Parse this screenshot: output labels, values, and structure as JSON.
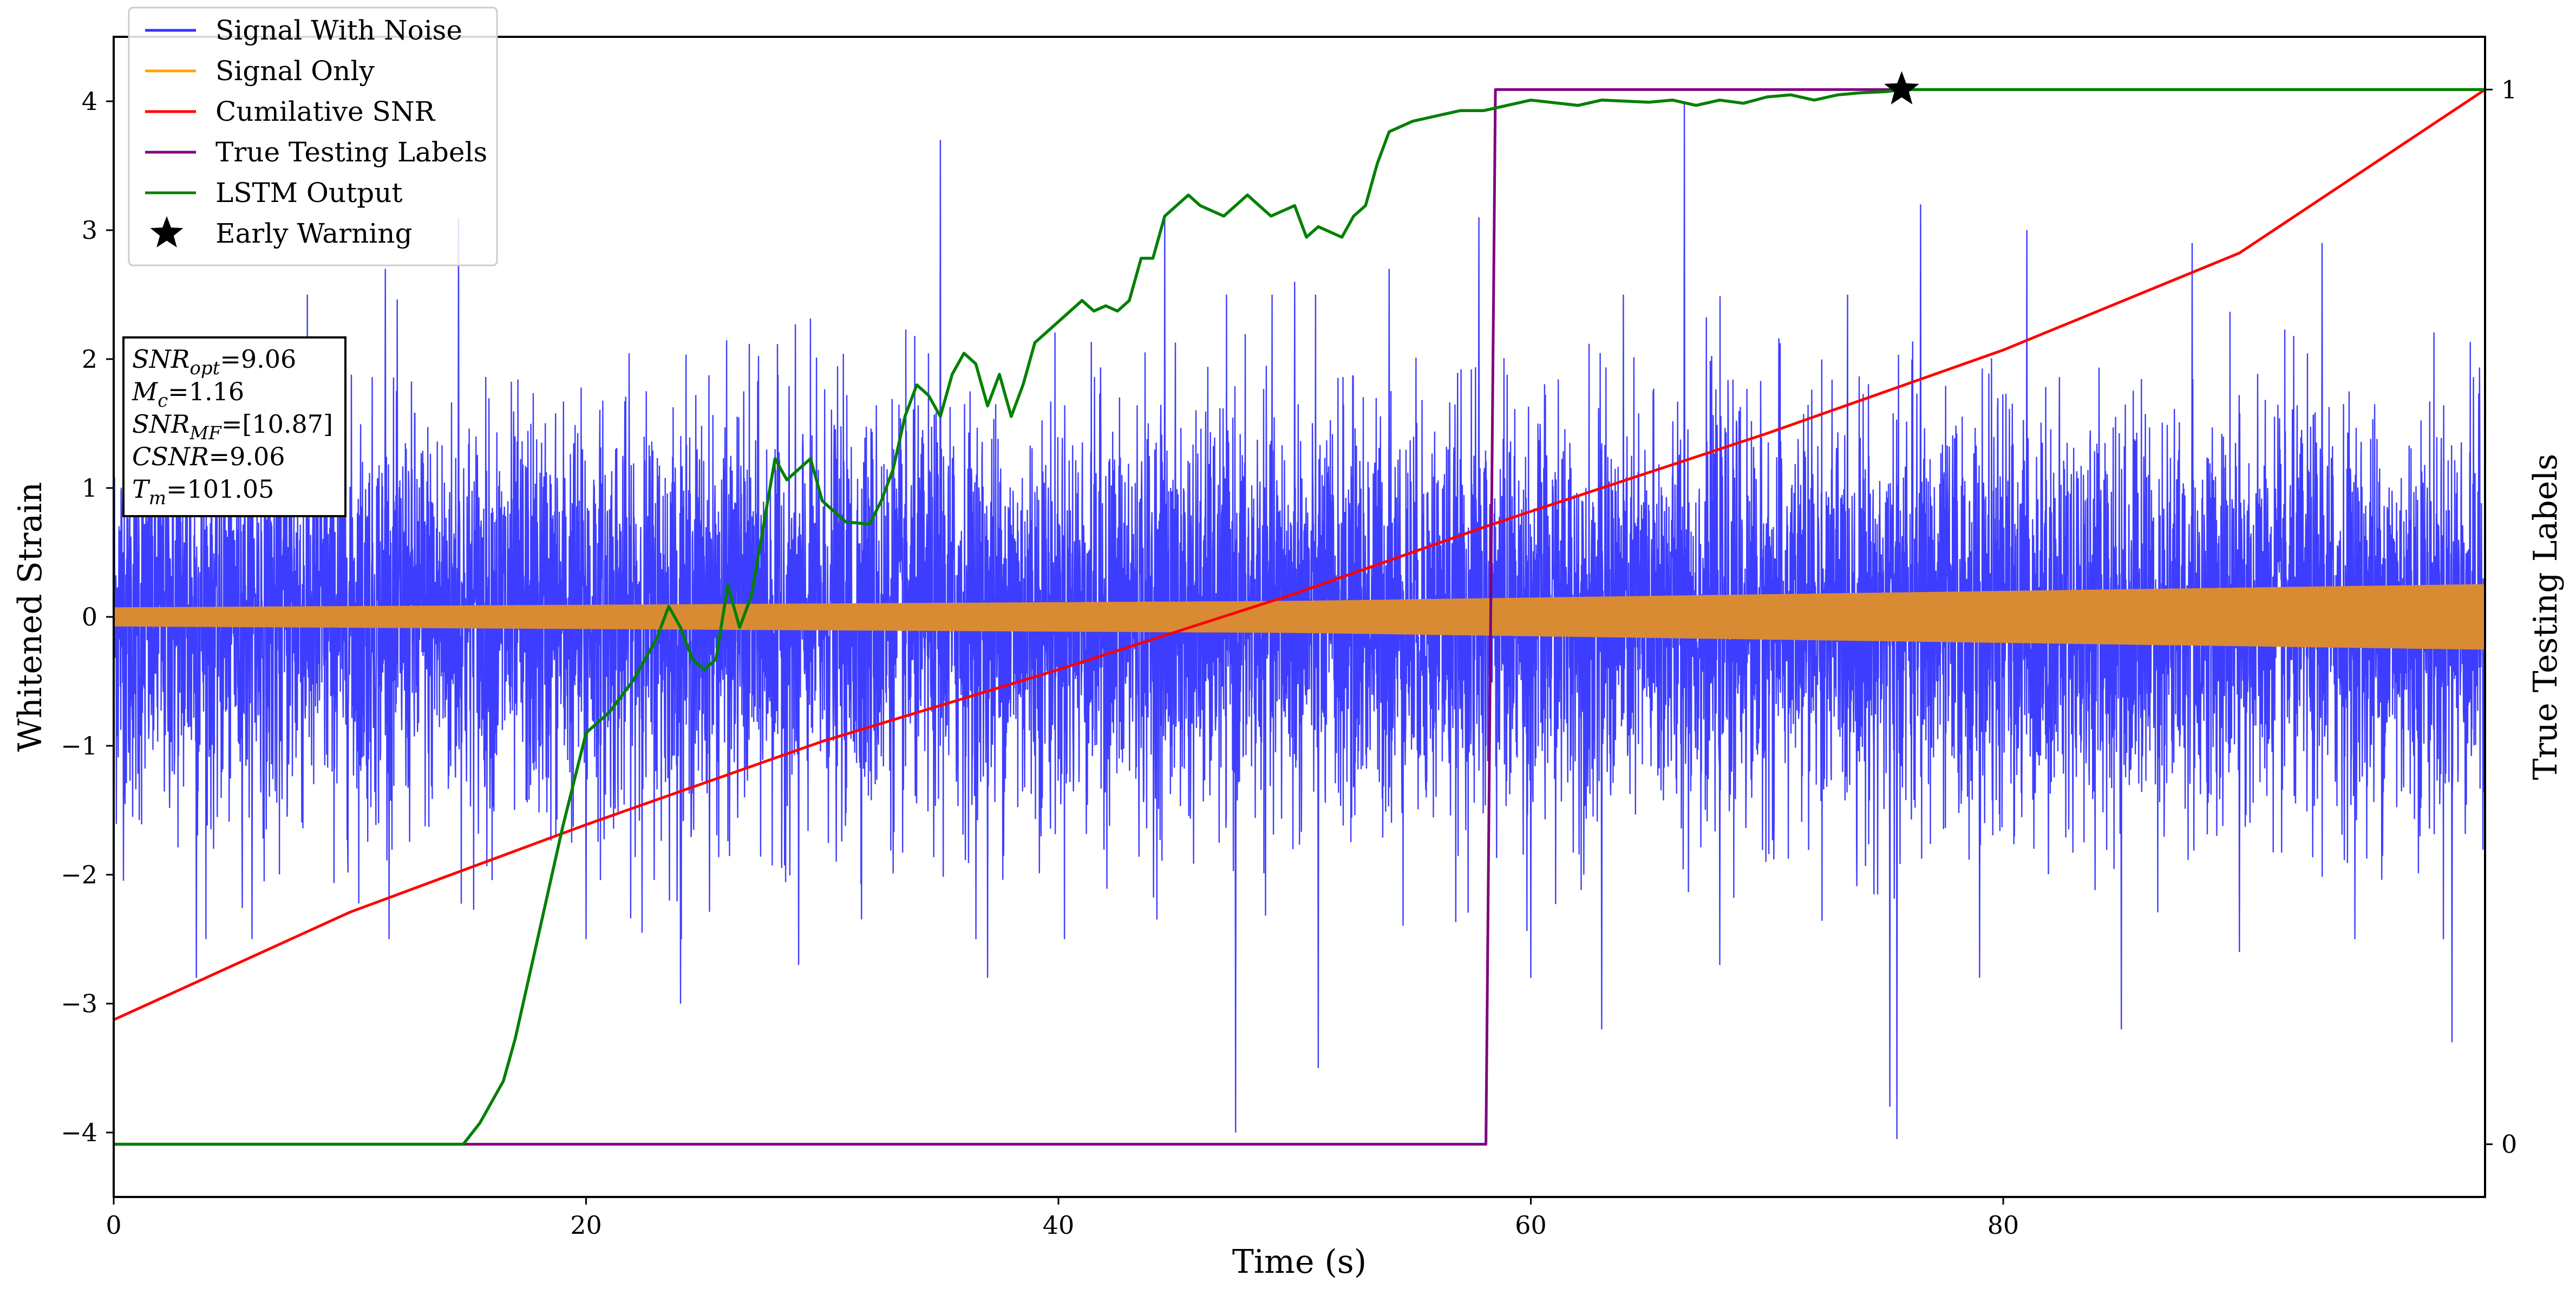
{
  "chart_data": {
    "type": "line",
    "title": "",
    "xlabel": "Time (s)",
    "ylabel": "Whitened Strain",
    "ylabel_right": "True Testing Labels",
    "xlim": [
      0,
      100.4
    ],
    "ylim": [
      -4.5,
      4.5
    ],
    "ylim_right": [
      -0.05,
      1.05
    ],
    "x_ticks": [
      0,
      20,
      40,
      60,
      80
    ],
    "x_tick_labels": [
      "0",
      "20",
      "40",
      "60",
      "80"
    ],
    "y_ticks": [
      -4,
      -3,
      -2,
      -1,
      0,
      1,
      2,
      3,
      4
    ],
    "y_tick_labels": [
      "−4",
      "−3",
      "−2",
      "−1",
      "0",
      "1",
      "2",
      "3",
      "4"
    ],
    "y_right_ticks": [
      0,
      1
    ],
    "y_right_tick_labels": [
      "0",
      "1"
    ],
    "grid": false,
    "legend_position": "top-left",
    "legend": [
      {
        "label": "Signal With Noise",
        "color": "#3333ff",
        "marker": "line"
      },
      {
        "label": "Signal Only",
        "color": "#ffa500",
        "marker": "line"
      },
      {
        "label": "Cumilative SNR",
        "color": "#ff0000",
        "marker": "line"
      },
      {
        "label": "True Testing Labels",
        "color": "#800080",
        "marker": "line"
      },
      {
        "label": "LSTM Output",
        "color": "#008000",
        "marker": "line"
      },
      {
        "label": "Early Warning",
        "color": "#000000",
        "marker": "star"
      }
    ],
    "annotation": [
      {
        "sym": "SNR",
        "sub": "opt",
        "val": "=9.06"
      },
      {
        "sym": "M",
        "sub": "c",
        "val": "=1.16"
      },
      {
        "sym": "SNR",
        "sub": "MF",
        "val": "=[10.87]"
      },
      {
        "sym": "CSNR",
        "sub": "",
        "val": "=9.06"
      },
      {
        "sym": "T",
        "sub": "m",
        "val": "=101.05"
      }
    ],
    "series": [
      {
        "name": "Signal With Noise",
        "color": "#3333ff",
        "axis": "left",
        "description": "dense noisy strain, mostly within about ±2, extremes near +4.0 and −4.0",
        "spikes": [
          [
            3.5,
            -2.8
          ],
          [
            11.5,
            2.7
          ],
          [
            14.6,
            3.1
          ],
          [
            20.0,
            -2.5
          ],
          [
            24.0,
            -3.0
          ],
          [
            29.0,
            -2.7
          ],
          [
            35.0,
            3.7
          ],
          [
            37.0,
            -2.8
          ],
          [
            44.5,
            3.1
          ],
          [
            47.5,
            -4.0
          ],
          [
            50.0,
            2.6
          ],
          [
            51.0,
            -3.5
          ],
          [
            54.0,
            2.7
          ],
          [
            57.8,
            3.1
          ],
          [
            60.0,
            -2.8
          ],
          [
            63.0,
            -3.2
          ],
          [
            66.5,
            4.0
          ],
          [
            68.0,
            -2.7
          ],
          [
            75.2,
            -3.8
          ],
          [
            75.5,
            -4.05
          ],
          [
            76.5,
            3.2
          ],
          [
            79.0,
            -2.8
          ],
          [
            81.0,
            3.0
          ],
          [
            85.0,
            -3.2
          ],
          [
            88.0,
            2.9
          ],
          [
            90.0,
            -2.6
          ],
          [
            93.5,
            2.9
          ],
          [
            99.0,
            -3.3
          ]
        ]
      },
      {
        "name": "Signal Only",
        "color": "#ffa500",
        "axis": "left",
        "envelope": {
          "x": [
            0,
            50,
            100.4
          ],
          "amp": [
            0.07,
            0.12,
            0.25
          ]
        }
      },
      {
        "name": "Cumilative SNR",
        "color": "#ff0000",
        "axis": "right",
        "x": [
          0,
          10,
          20,
          30,
          40,
          50,
          58,
          60,
          70,
          80,
          90,
          100.4
        ],
        "y": [
          0.118,
          0.22,
          0.303,
          0.382,
          0.45,
          0.522,
          0.585,
          0.6,
          0.674,
          0.753,
          0.845,
          1.0
        ]
      },
      {
        "name": "True Testing Labels",
        "color": "#800080",
        "axis": "right",
        "x": [
          0,
          58.1,
          58.5,
          75.8
        ],
        "y": [
          0,
          0,
          1,
          1
        ]
      },
      {
        "name": "LSTM Output",
        "color": "#008000",
        "axis": "right",
        "x": [
          0,
          14.8,
          15.5,
          16.5,
          17.0,
          18.0,
          19.0,
          20.0,
          21.0,
          22.0,
          23.0,
          23.5,
          24.0,
          24.5,
          25.0,
          25.5,
          26.0,
          26.5,
          27.0,
          28.0,
          28.5,
          29.0,
          29.5,
          30.0,
          31.0,
          32.0,
          32.5,
          33.0,
          33.5,
          34.0,
          34.5,
          35.0,
          35.5,
          36.0,
          36.5,
          37.0,
          37.5,
          38.0,
          38.5,
          39.0,
          40.0,
          40.5,
          41.0,
          41.5,
          42.0,
          42.5,
          43.0,
          43.5,
          44.0,
          44.5,
          45.0,
          45.5,
          46.0,
          47.0,
          48.0,
          48.5,
          49.0,
          50.0,
          50.5,
          51.0,
          52.0,
          52.5,
          53.0,
          53.5,
          54.0,
          55.0,
          56.0,
          57.0,
          58.0,
          59.0,
          60.0,
          62.0,
          63.0,
          65.0,
          66.0,
          67.0,
          68.0,
          69.0,
          70.0,
          71.0,
          72.0,
          73.0,
          74.0,
          75.0,
          75.8,
          77.0,
          80.0,
          90.0,
          100.4
        ],
        "y": [
          0,
          0,
          0.02,
          0.06,
          0.1,
          0.2,
          0.3,
          0.39,
          0.41,
          0.44,
          0.48,
          0.51,
          0.49,
          0.46,
          0.45,
          0.46,
          0.53,
          0.49,
          0.52,
          0.65,
          0.63,
          0.64,
          0.65,
          0.61,
          0.59,
          0.588,
          0.61,
          0.64,
          0.69,
          0.72,
          0.71,
          0.69,
          0.73,
          0.75,
          0.74,
          0.7,
          0.73,
          0.69,
          0.72,
          0.76,
          0.78,
          0.79,
          0.8,
          0.79,
          0.795,
          0.79,
          0.8,
          0.84,
          0.84,
          0.88,
          0.89,
          0.9,
          0.89,
          0.88,
          0.9,
          0.89,
          0.88,
          0.89,
          0.86,
          0.87,
          0.86,
          0.88,
          0.89,
          0.93,
          0.96,
          0.97,
          0.975,
          0.98,
          0.98,
          0.985,
          0.99,
          0.985,
          0.99,
          0.988,
          0.99,
          0.985,
          0.99,
          0.987,
          0.993,
          0.995,
          0.99,
          0.995,
          0.997,
          0.998,
          1.0,
          1.0,
          1.0,
          1.0,
          1.0
        ]
      },
      {
        "name": "Early Warning",
        "color": "#000000",
        "axis": "right",
        "marker": "star",
        "x": [
          75.7
        ],
        "y": [
          1.0
        ]
      }
    ]
  }
}
